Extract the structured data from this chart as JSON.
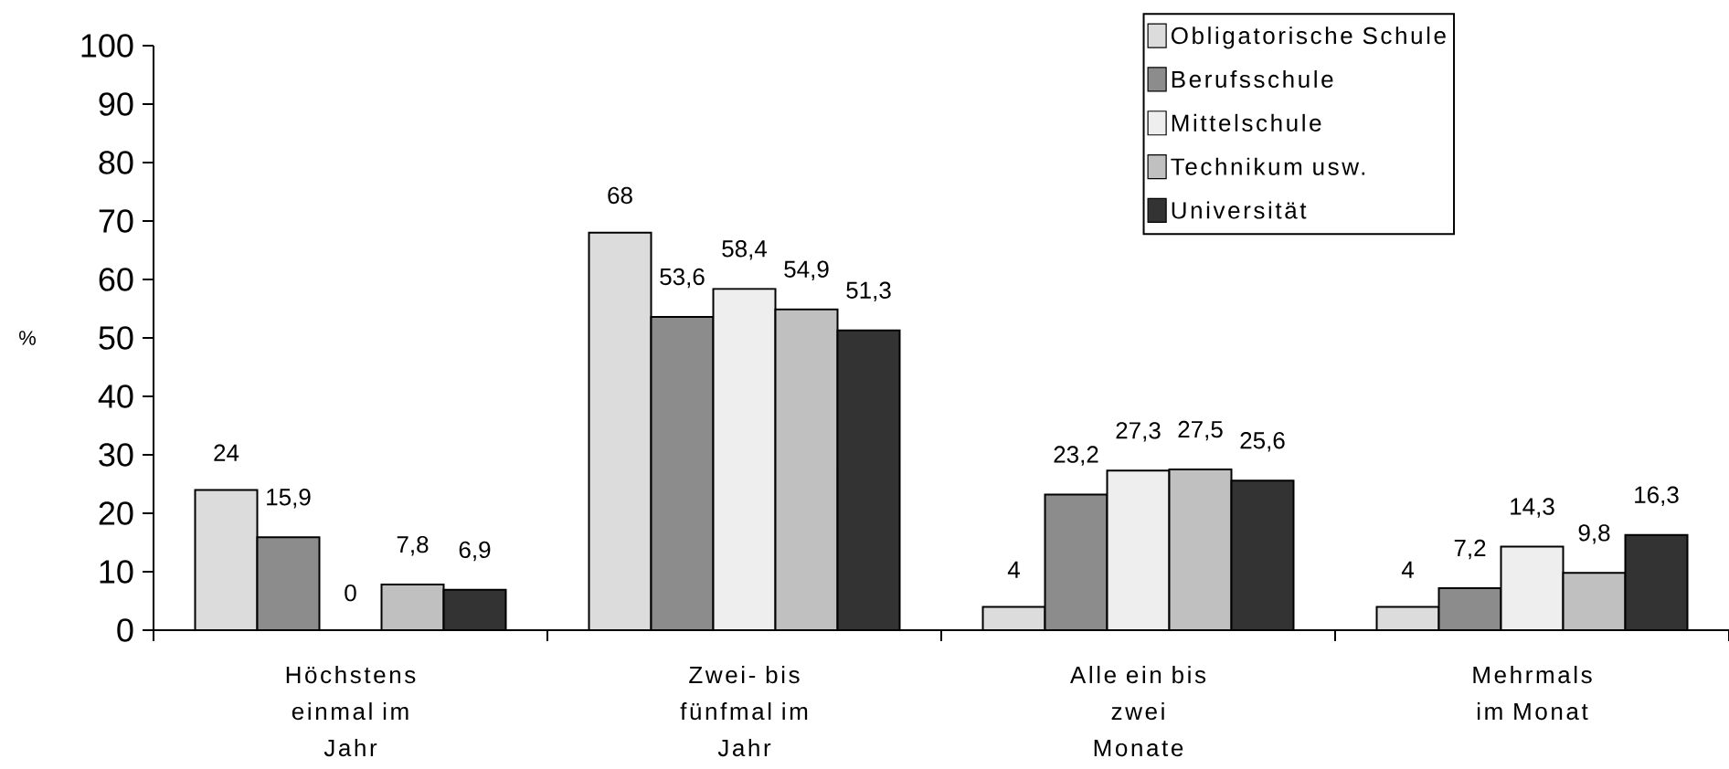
{
  "chart_data": {
    "type": "bar",
    "ylabel": "%",
    "categories": [
      "Höchstens einmal im Jahr",
      "Zwei- bis fünfmal im Jahr",
      "Alle ein bis zwei Monate",
      "Mehrmals im Monat"
    ],
    "series": [
      {
        "name": "Obligatorische Schule",
        "color": "#dcdcdc",
        "values": [
          24,
          68,
          4,
          4
        ],
        "value_labels": [
          "24",
          "68",
          "4",
          "4"
        ]
      },
      {
        "name": "Berufsschule",
        "color": "#8c8c8c",
        "values": [
          15.9,
          53.6,
          23.2,
          7.2
        ],
        "value_labels": [
          "15,9",
          "53,6",
          "23,2",
          "7,2"
        ]
      },
      {
        "name": "Mittelschule",
        "color": "#eeeeee",
        "values": [
          0,
          58.4,
          27.3,
          14.3
        ],
        "value_labels": [
          "0",
          "58,4",
          "27,3",
          "14,3"
        ]
      },
      {
        "name": "Technikum usw.",
        "color": "#c0c0c0",
        "values": [
          7.8,
          54.9,
          27.5,
          9.8
        ],
        "value_labels": [
          "7,8",
          "54,9",
          "27,5",
          "9,8"
        ]
      },
      {
        "name": "Universität",
        "color": "#333333",
        "values": [
          6.9,
          51.3,
          25.6,
          16.3
        ],
        "value_labels": [
          "6,9",
          "51,3",
          "25,6",
          "16,3"
        ]
      }
    ],
    "ylim": [
      0,
      100
    ],
    "yticks": [
      0,
      10,
      20,
      30,
      40,
      50,
      60,
      70,
      80,
      90,
      100
    ],
    "legend": "top right"
  }
}
